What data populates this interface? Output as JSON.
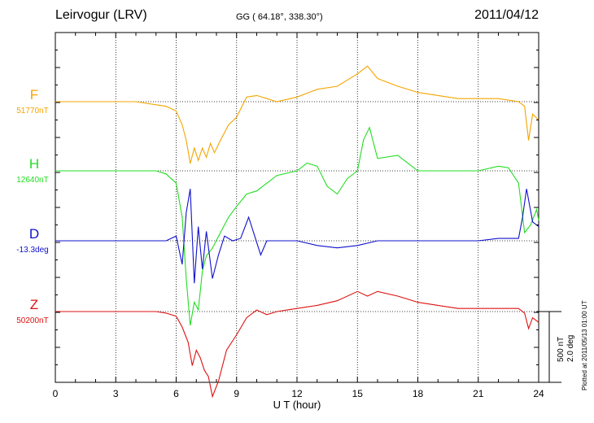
{
  "header": {
    "station": "Leirvogur (LRV)",
    "coords": "GG ( 64.18°, 338.30°)",
    "date": "2011/04/12"
  },
  "footer": {
    "plotted": "Plotted at 2011/05/13 01:00 UT"
  },
  "scale": {
    "nt": "500 nT",
    "deg": "2.0 deg"
  },
  "chart_data": {
    "type": "line",
    "xlabel": "U T (hour)",
    "xlim": [
      0,
      24
    ],
    "xticks": [
      "0",
      "3",
      "6",
      "9",
      "12",
      "15",
      "18",
      "21",
      "24"
    ],
    "grid": true,
    "series": [
      {
        "name": "F",
        "baseline": "51770nT",
        "color": "#f5a500",
        "x": [
          0,
          1,
          2,
          3,
          4,
          5,
          5.5,
          6,
          6.3,
          6.5,
          6.7,
          6.9,
          7.1,
          7.3,
          7.5,
          7.7,
          7.9,
          8.2,
          8.6,
          9,
          9.5,
          10,
          10.5,
          11,
          12,
          13,
          14,
          15,
          15.5,
          16,
          17,
          18,
          19,
          20,
          21,
          22,
          23,
          23.3,
          23.5,
          23.7,
          24
        ],
        "y": [
          0,
          0,
          0,
          0,
          0,
          -20,
          -30,
          -60,
          -150,
          -250,
          -400,
          -300,
          -380,
          -300,
          -360,
          -270,
          -330,
          -250,
          -150,
          -100,
          30,
          40,
          20,
          0,
          30,
          80,
          100,
          180,
          230,
          150,
          100,
          60,
          40,
          20,
          20,
          20,
          0,
          -30,
          -250,
          -80,
          -120
        ]
      },
      {
        "name": "H",
        "baseline": "12640nT",
        "color": "#22dd22",
        "x": [
          0,
          1,
          2,
          3,
          4,
          5,
          5.5,
          6,
          6.3,
          6.5,
          6.7,
          6.9,
          7.1,
          7.3,
          7.5,
          7.8,
          8.2,
          8.6,
          9,
          9.5,
          10,
          10.5,
          11,
          12,
          12.5,
          13,
          13.5,
          14,
          14.5,
          15,
          15.3,
          15.6,
          16,
          17,
          18,
          19,
          20,
          21,
          22,
          22.5,
          23,
          23.3,
          23.6,
          23.9,
          24
        ],
        "y": [
          0,
          0,
          0,
          0,
          0,
          0,
          -20,
          -80,
          -300,
          -700,
          -1000,
          -850,
          -900,
          -650,
          -550,
          -500,
          -400,
          -300,
          -230,
          -150,
          -130,
          -80,
          -30,
          0,
          50,
          30,
          -100,
          -150,
          -50,
          0,
          200,
          280,
          80,
          100,
          0,
          0,
          0,
          0,
          30,
          20,
          -80,
          -400,
          -350,
          -250,
          -320
        ]
      },
      {
        "name": "D",
        "baseline": "-13.3deg",
        "color": "#1010cc",
        "x": [
          0,
          1,
          2,
          3,
          4,
          5,
          5.5,
          6,
          6.3,
          6.5,
          6.7,
          6.9,
          7.1,
          7.3,
          7.5,
          7.8,
          8.1,
          8.4,
          8.8,
          9.2,
          9.6,
          9.9,
          10.2,
          10.5,
          11,
          12,
          13,
          14,
          15,
          16,
          17,
          18,
          19,
          20,
          21,
          22,
          23,
          23.2,
          23.4,
          23.7,
          24
        ],
        "y": [
          0,
          0,
          0,
          0,
          0,
          0,
          0,
          0.1,
          -0.5,
          0.6,
          1.1,
          -0.9,
          0.3,
          -0.6,
          0.2,
          -0.8,
          -0.3,
          0.1,
          0,
          0.05,
          0.5,
          0.1,
          -0.3,
          0,
          0,
          0,
          -0.1,
          -0.15,
          -0.1,
          0,
          0,
          0,
          0,
          0,
          0,
          0.05,
          0.05,
          0.5,
          1.1,
          0.4,
          0.3
        ]
      },
      {
        "name": "Z",
        "baseline": "50200nT",
        "color": "#dd1111",
        "x": [
          0,
          1,
          2,
          3,
          4,
          5,
          5.5,
          6,
          6.3,
          6.6,
          6.8,
          7,
          7.2,
          7.4,
          7.6,
          7.8,
          8.1,
          8.5,
          9,
          9.5,
          10,
          10.5,
          11,
          12,
          13,
          14,
          15,
          15.5,
          16,
          17,
          18,
          19,
          20,
          21,
          22,
          23,
          23.3,
          23.5,
          23.7,
          24
        ],
        "y": [
          0,
          0,
          0,
          0,
          0,
          0,
          -10,
          -30,
          -100,
          -200,
          -350,
          -250,
          -300,
          -380,
          -420,
          -550,
          -450,
          -250,
          -150,
          -40,
          10,
          -20,
          0,
          20,
          40,
          70,
          130,
          100,
          130,
          100,
          60,
          40,
          20,
          20,
          20,
          20,
          -10,
          -110,
          -40,
          -70
        ]
      }
    ]
  }
}
